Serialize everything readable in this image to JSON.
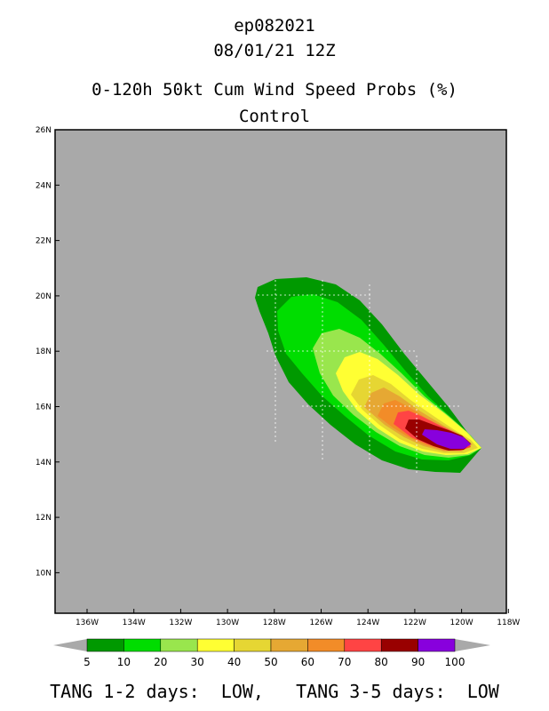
{
  "header": {
    "storm_id": "ep082021",
    "datetime": "08/01/21 12Z",
    "product": "0-120h 50kt Cum Wind Speed Probs (%)",
    "member": "Control"
  },
  "map": {
    "background_color": "#a9a9a9",
    "lon_labels": [
      "136W",
      "134W",
      "132W",
      "130W",
      "128W",
      "126W",
      "124W",
      "122W",
      "120W",
      "118W"
    ],
    "lat_labels": [
      "26N",
      "24N",
      "22N",
      "20N",
      "18N",
      "16N",
      "14N",
      "12N",
      "10N"
    ]
  },
  "legend": {
    "levels": [
      "5",
      "10",
      "20",
      "30",
      "40",
      "50",
      "60",
      "70",
      "80",
      "90",
      "100"
    ],
    "colors": [
      "#009900",
      "#00dd00",
      "#99e64d",
      "#ffff33",
      "#e6d633",
      "#e6a833",
      "#f28c28",
      "#ff4444",
      "#990000",
      "#8800dd"
    ]
  },
  "footer": {
    "text": "TANG 1-2 days:  LOW,   TANG 3-5 days:  LOW"
  }
}
